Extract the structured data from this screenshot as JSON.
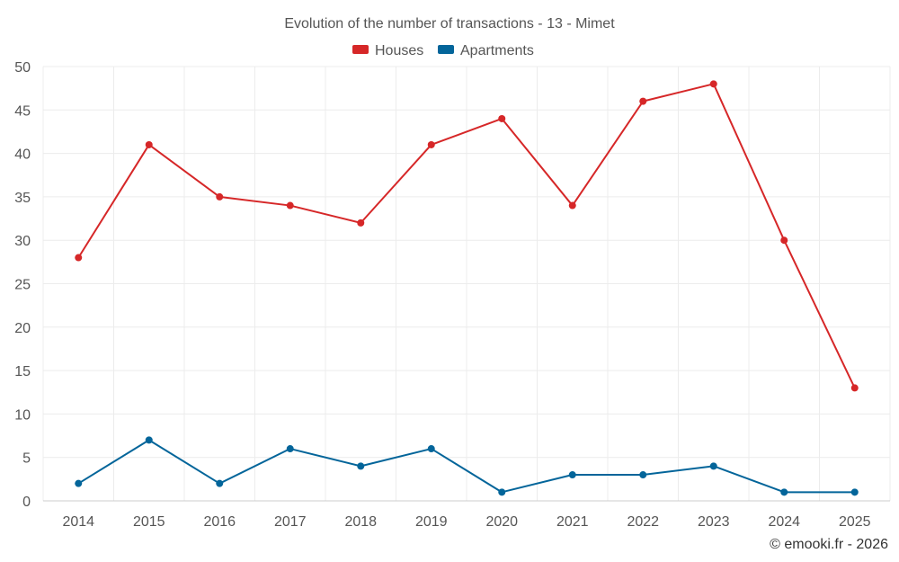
{
  "chart_data": {
    "type": "line",
    "title": "Evolution of the number of transactions - 13 - Mimet",
    "xlabel": "",
    "ylabel": "",
    "categories": [
      "2014",
      "2015",
      "2016",
      "2017",
      "2018",
      "2019",
      "2020",
      "2021",
      "2022",
      "2023",
      "2024",
      "2025"
    ],
    "ylim": [
      0,
      50
    ],
    "yticks": [
      0,
      5,
      10,
      15,
      20,
      25,
      30,
      35,
      40,
      45,
      50
    ],
    "grid": true,
    "legend_position": "top-center",
    "series": [
      {
        "name": "Houses",
        "color": "#d62728",
        "values": [
          28,
          41,
          35,
          34,
          32,
          41,
          44,
          34,
          46,
          48,
          30,
          13
        ]
      },
      {
        "name": "Apartments",
        "color": "#03659a",
        "values": [
          2,
          7,
          2,
          6,
          4,
          6,
          1,
          3,
          3,
          4,
          1,
          1
        ]
      }
    ]
  },
  "credit": "© emooki.fr - 2026"
}
